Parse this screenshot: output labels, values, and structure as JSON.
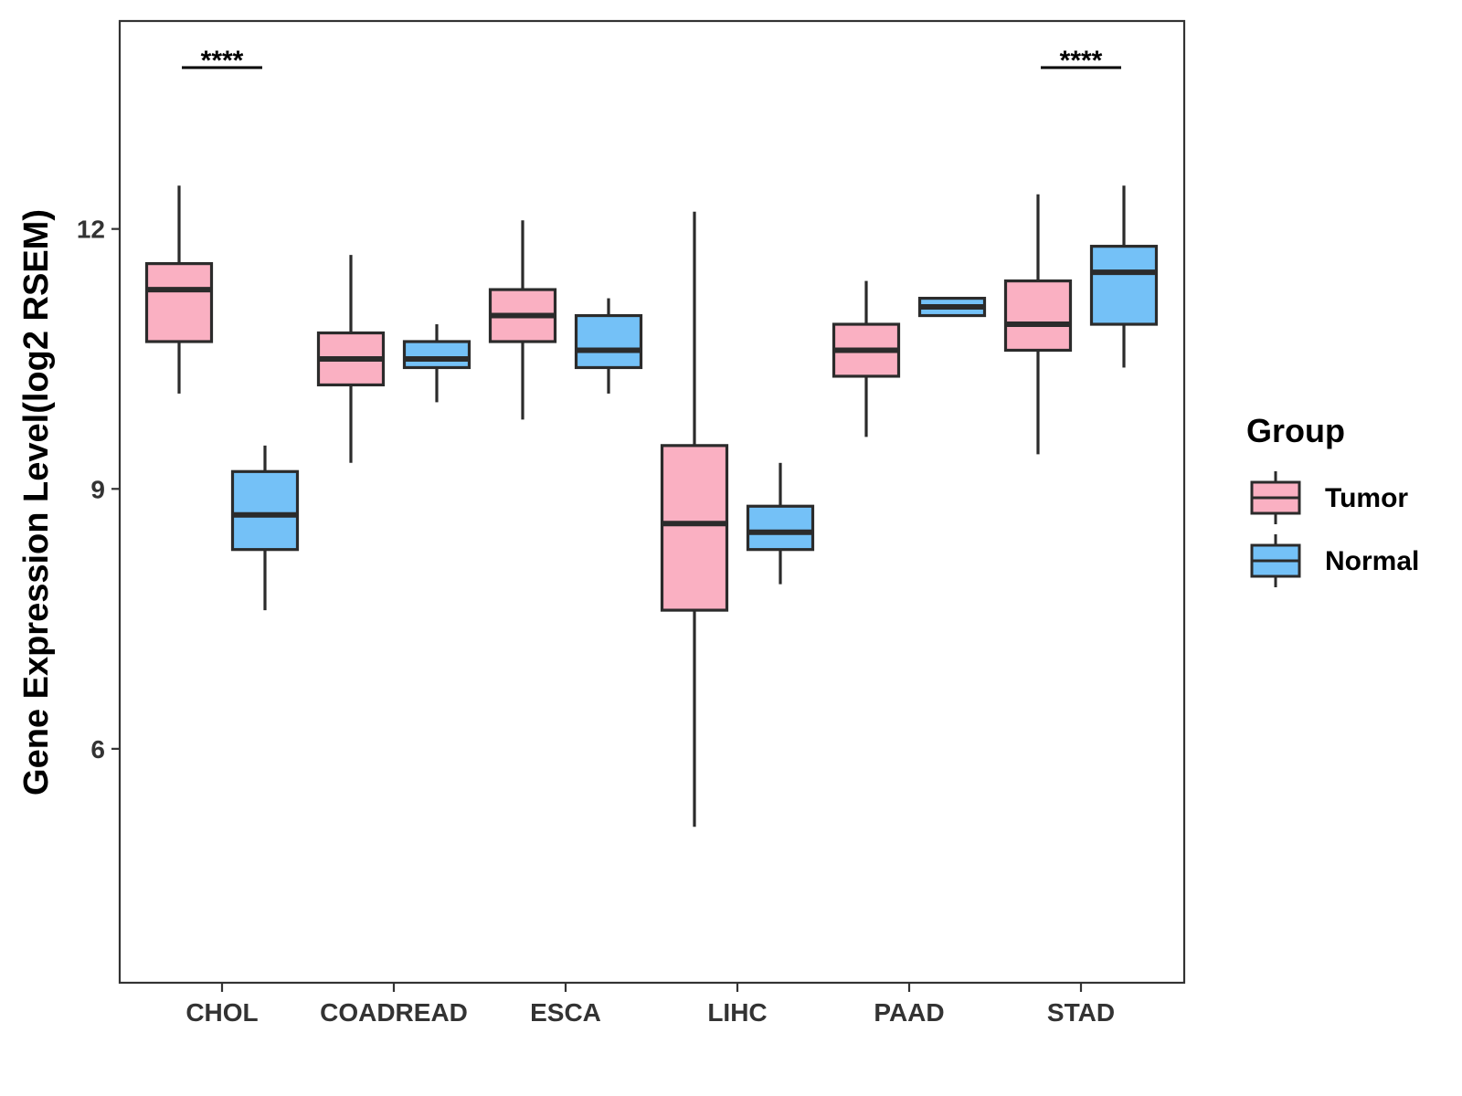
{
  "chart_data": {
    "type": "boxplot",
    "title": "",
    "xlabel": "",
    "ylabel": "Gene Expression Level(log2 RSEM)",
    "ylim": [
      3.3,
      14.4
    ],
    "yticks": [
      6,
      9,
      12
    ],
    "ytick_labels": [
      "6",
      "9",
      "12"
    ],
    "categories": [
      "CHOL",
      "COADREAD",
      "ESCA",
      "LIHC",
      "PAAD",
      "STAD"
    ],
    "legend": {
      "title": "Group",
      "position": "right",
      "entries": [
        {
          "name": "Tumor",
          "color": "#FAB0C2"
        },
        {
          "name": "Normal",
          "color": "#74C1F7"
        }
      ]
    },
    "series": [
      {
        "name": "Tumor",
        "color": "#FAB0C2",
        "boxes": [
          {
            "category": "CHOL",
            "whisker_low": 10.1,
            "q1": 10.7,
            "median": 11.3,
            "q3": 11.6,
            "whisker_high": 12.5
          },
          {
            "category": "COADREAD",
            "whisker_low": 9.3,
            "q1": 10.2,
            "median": 10.5,
            "q3": 10.8,
            "whisker_high": 11.7
          },
          {
            "category": "ESCA",
            "whisker_low": 9.8,
            "q1": 10.7,
            "median": 11.0,
            "q3": 11.3,
            "whisker_high": 12.1
          },
          {
            "category": "LIHC",
            "whisker_low": 5.1,
            "q1": 7.6,
            "median": 8.6,
            "q3": 9.5,
            "whisker_high": 12.2
          },
          {
            "category": "PAAD",
            "whisker_low": 9.6,
            "q1": 10.3,
            "median": 10.6,
            "q3": 10.9,
            "whisker_high": 11.4
          },
          {
            "category": "STAD",
            "whisker_low": 9.4,
            "q1": 10.6,
            "median": 10.9,
            "q3": 11.4,
            "whisker_high": 12.4
          }
        ]
      },
      {
        "name": "Normal",
        "color": "#74C1F7",
        "boxes": [
          {
            "category": "CHOL",
            "whisker_low": 7.6,
            "q1": 8.3,
            "median": 8.7,
            "q3": 9.2,
            "whisker_high": 9.5
          },
          {
            "category": "COADREAD",
            "whisker_low": 10.0,
            "q1": 10.4,
            "median": 10.5,
            "q3": 10.7,
            "whisker_high": 10.9
          },
          {
            "category": "ESCA",
            "whisker_low": 10.1,
            "q1": 10.4,
            "median": 10.6,
            "q3": 11.0,
            "whisker_high": 11.2
          },
          {
            "category": "LIHC",
            "whisker_low": 7.9,
            "q1": 8.3,
            "median": 8.5,
            "q3": 8.8,
            "whisker_high": 9.3
          },
          {
            "category": "PAAD",
            "whisker_low": 11.0,
            "q1": 11.0,
            "median": 11.1,
            "q3": 11.2,
            "whisker_high": 11.2
          },
          {
            "category": "STAD",
            "whisker_low": 10.4,
            "q1": 10.9,
            "median": 11.5,
            "q3": 11.8,
            "whisker_high": 12.5
          }
        ]
      }
    ],
    "annotations": [
      {
        "category": "CHOL",
        "text": "****"
      },
      {
        "category": "STAD",
        "text": "****"
      }
    ],
    "grid": false
  }
}
